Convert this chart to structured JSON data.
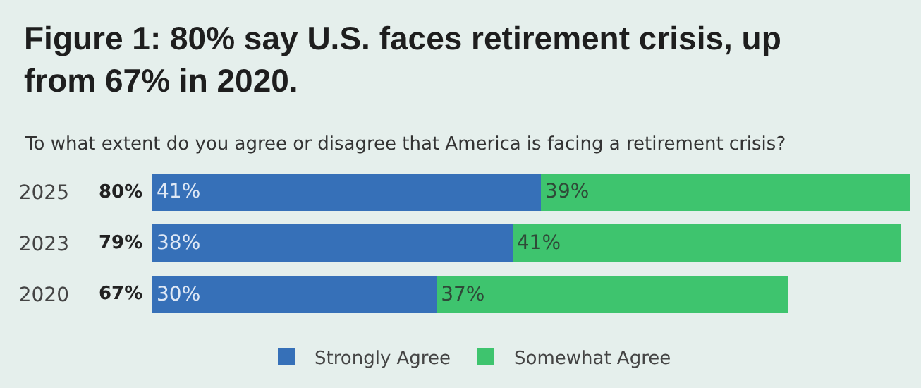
{
  "chart_data": {
    "type": "bar",
    "orientation": "horizontal",
    "stacked": true,
    "title": "Figure 1: 80% say U.S. faces retirement crisis, up from 67% in 2020.",
    "subtitle": "To what extent do you agree or disagree that America is facing a retirement crisis?",
    "categories": [
      "2025",
      "2023",
      "2020"
    ],
    "series": [
      {
        "name": "Strongly Agree",
        "color": "#3670b8",
        "values": [
          41,
          38,
          30
        ],
        "value_labels": [
          "41%",
          "38%",
          "30%"
        ]
      },
      {
        "name": "Somewhat Agree",
        "color": "#3ec46e",
        "values": [
          39,
          41,
          37
        ],
        "value_labels": [
          "39%",
          "41%",
          "37%"
        ]
      }
    ],
    "totals": [
      "80%",
      "79%",
      "67%"
    ],
    "xlim": [
      0,
      80.5
    ],
    "grid": false,
    "legend": "bottom",
    "tick_labels": "y"
  }
}
